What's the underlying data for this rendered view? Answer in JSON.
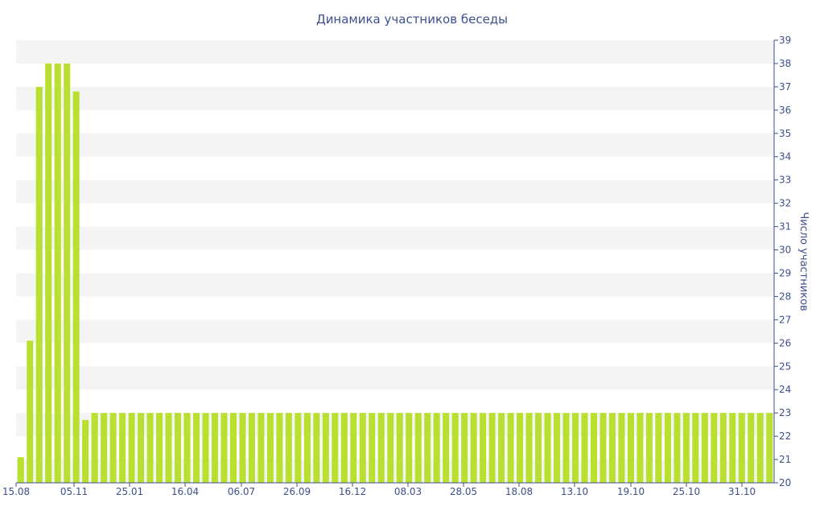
{
  "chart_data": {
    "type": "bar",
    "title": "Динамика участников беседы",
    "xlabel": "",
    "ylabel": "Число участников",
    "y_axis_side": "right",
    "ylim": [
      20,
      39
    ],
    "y_ticks": [
      "20",
      "21",
      "22",
      "23",
      "24",
      "25",
      "26",
      "27",
      "28",
      "29",
      "30",
      "31",
      "32",
      "33",
      "34",
      "35",
      "36",
      "37",
      "38",
      "39"
    ],
    "x_tick_labels": [
      "15.08",
      "05.11",
      "25.01",
      "16.04",
      "06.07",
      "26.09",
      "16.12",
      "08.03",
      "28.05",
      "18.08",
      "13.10",
      "19.10",
      "25.10",
      "31.10"
    ],
    "alternating_bands": true,
    "bar_color": "#b9e02e",
    "band_color": "#f4f4f4",
    "text_color": "#3d4f8f",
    "series": [
      {
        "values": [
          21.1,
          26.1,
          37,
          38,
          38,
          38,
          36.8,
          22.7,
          23,
          23,
          23,
          23,
          23,
          23,
          23,
          23,
          23,
          23,
          23,
          23,
          23,
          23,
          23,
          23,
          23,
          23,
          23,
          23,
          23,
          23,
          23,
          23,
          23,
          23,
          23,
          23,
          23,
          23,
          23,
          23,
          23,
          23,
          23,
          23,
          23,
          23,
          23,
          23,
          23,
          23,
          23,
          23,
          23,
          23,
          23,
          23,
          23,
          23,
          23,
          23,
          23,
          23,
          23,
          23,
          23,
          23,
          23,
          23,
          23,
          23,
          23,
          23,
          23,
          23,
          23,
          23,
          23,
          23,
          23,
          23,
          23,
          23
        ]
      }
    ]
  }
}
